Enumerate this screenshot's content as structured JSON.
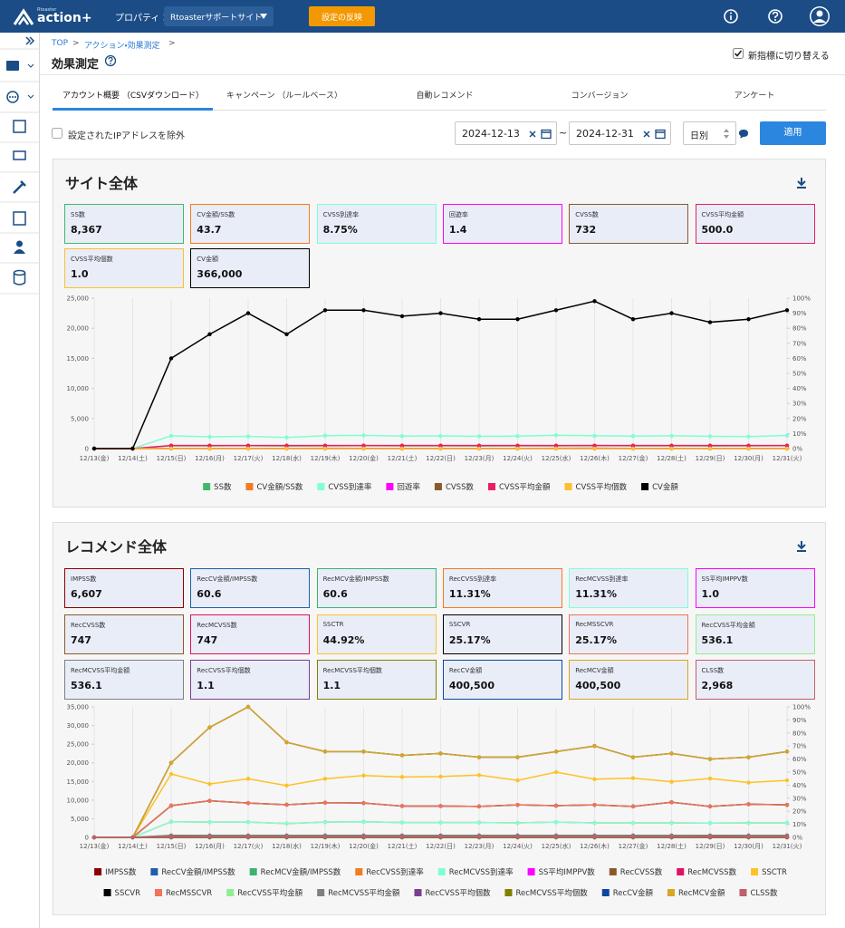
{
  "header": {
    "logo_small": "Rtoaster",
    "logo": "action+",
    "property_label": "プロパティ：",
    "property": "Rtoasterサポートサイト",
    "apply_button": "設定の反映"
  },
  "breadcrumb": {
    "items": [
      "TOP",
      "アクション・効果測定"
    ],
    "separator": ">"
  },
  "page_title": "効果測定",
  "switch_label": "新指標に切り替える",
  "tabs": [
    "アカウント概要 （CSVダウンロード）",
    "キャンペーン （ルールベース）",
    "自動レコメンド",
    "コンバージョン",
    "アンケート"
  ],
  "filters": {
    "exclude_ip": "設定されたIPアドレスを除外",
    "start_date": "2024-12-13",
    "separator": "~",
    "end_date": "2024-12-31",
    "interval": "日別",
    "apply": "適用"
  },
  "sections": [
    {
      "title": "サイト全体",
      "kpi_values": [
        "8,367",
        "43.7",
        "8.75%",
        "1.4",
        "732",
        "500.0",
        "1.0",
        "366,000"
      ]
    },
    {
      "title": "レコメンド全体",
      "kpi_values": [
        "6,607",
        "60.6",
        "60.6",
        "11.31%",
        "11.31%",
        "1.0",
        "747",
        "747",
        "44.92%",
        "25.17%",
        "25.17%",
        "536.1",
        "536.1",
        "1.1",
        "1.1",
        "400,500",
        "400,500",
        "2,968"
      ]
    }
  ],
  "chart_data": [
    {
      "type": "line",
      "categories": [
        "12/13(金)",
        "12/14(土)",
        "12/15(日)",
        "12/16(月)",
        "12/17(火)",
        "12/18(水)",
        "12/19(木)",
        "12/20(金)",
        "12/21(土)",
        "12/22(日)",
        "12/23(月)",
        "12/24(火)",
        "12/25(水)",
        "12/26(木)",
        "12/27(金)",
        "12/28(土)",
        "12/29(日)",
        "12/30(月)",
        "12/31(火)"
      ],
      "ylim": [
        0,
        25000
      ],
      "yticks": [
        0,
        {
          "value": 5000,
          "label": "5,000"
        },
        {
          "value": 10000,
          "label": "10,000"
        },
        {
          "value": 15000,
          "label": "15,000"
        },
        {
          "value": 20000,
          "label": "20,000"
        },
        {
          "value": 25000,
          "label": "25,000"
        }
      ],
      "y2lim": [
        0,
        100
      ],
      "y2ticks": [
        {
          "value": 0,
          "label": "0%"
        },
        {
          "value": 10,
          "label": "10%"
        },
        {
          "value": 20,
          "label": "20%"
        },
        {
          "value": 30,
          "label": "30%"
        },
        {
          "value": 40,
          "label": "40%"
        },
        {
          "value": 50,
          "label": "50%"
        },
        {
          "value": 60,
          "label": "60%"
        },
        {
          "value": 70,
          "label": "70%"
        },
        {
          "value": 80,
          "label": "80%"
        },
        {
          "value": 90,
          "label": "90%"
        },
        {
          "value": 100,
          "label": "100%"
        }
      ],
      "series": [
        {
          "name": "SS数",
          "color": "#3dbb6a",
          "values": [
            0,
            0,
            480,
            470,
            490,
            460,
            480,
            490,
            470,
            480,
            460,
            470,
            480,
            500,
            470,
            480,
            460,
            470,
            490
          ]
        },
        {
          "name": "CV金額/SS数",
          "color": "#f47b20",
          "values": [
            0,
            0,
            31,
            40,
            46,
            41,
            48,
            47,
            47,
            47,
            47,
            46,
            48,
            49,
            46,
            47,
            46,
            46,
            47
          ]
        },
        {
          "name": "CVSS到達率",
          "color": "#7fffd4",
          "axis": "y2",
          "values": [
            0,
            0,
            8.5,
            7.8,
            8.1,
            7.4,
            8.6,
            8.8,
            8.3,
            8.4,
            8.2,
            8.3,
            8.9,
            8.5,
            8.3,
            8.5,
            8.2,
            8.0,
            8.7
          ]
        },
        {
          "name": "回遊率",
          "color": "#ff00ff",
          "values": [
            0,
            0,
            1.4,
            1.4,
            1.4,
            1.4,
            1.4,
            1.4,
            1.4,
            1.4,
            1.4,
            1.4,
            1.4,
            1.4,
            1.4,
            1.4,
            1.4,
            1.4,
            1.4
          ]
        },
        {
          "name": "CVSS数",
          "color": "#8b5a2b",
          "values": [
            0,
            0,
            30,
            38,
            45,
            38,
            46,
            46,
            44,
            45,
            43,
            43,
            46,
            49,
            43,
            45,
            42,
            43,
            46
          ]
        },
        {
          "name": "CVSS平均金額",
          "color": "#e91e63",
          "values": [
            0,
            0,
            500,
            500,
            500,
            500,
            500,
            500,
            500,
            500,
            500,
            500,
            500,
            500,
            500,
            500,
            500,
            500,
            500
          ]
        },
        {
          "name": "CVSS平均個数",
          "color": "#fbc02d",
          "values": [
            0,
            0,
            1,
            1,
            1,
            1,
            1,
            1,
            1,
            1,
            1,
            1,
            1,
            1,
            1,
            1,
            1,
            1,
            1
          ]
        },
        {
          "name": "CV金額",
          "color": "#000000",
          "values": [
            0,
            0,
            15000,
            19000,
            22500,
            19000,
            23000,
            23000,
            22000,
            22500,
            21500,
            21500,
            23000,
            24500,
            21500,
            22500,
            21000,
            21500,
            23000
          ]
        }
      ]
    },
    {
      "type": "line",
      "categories": [
        "12/13(金)",
        "12/14(土)",
        "12/15(日)",
        "12/16(月)",
        "12/17(火)",
        "12/18(水)",
        "12/19(木)",
        "12/20(金)",
        "12/21(土)",
        "12/22(日)",
        "12/23(月)",
        "12/24(火)",
        "12/25(水)",
        "12/26(木)",
        "12/27(金)",
        "12/28(土)",
        "12/29(日)",
        "12/30(月)",
        "12/31(火)"
      ],
      "ylim": [
        0,
        35000
      ],
      "yticks": [
        0,
        {
          "value": 5000,
          "label": "5,000"
        },
        {
          "value": 10000,
          "label": "10,000"
        },
        {
          "value": 15000,
          "label": "15,000"
        },
        {
          "value": 20000,
          "label": "20,000"
        },
        {
          "value": 25000,
          "label": "25,000"
        },
        {
          "value": 30000,
          "label": "30,000"
        },
        {
          "value": 35000,
          "label": "35,000"
        }
      ],
      "y2lim": [
        0,
        100
      ],
      "y2ticks": [
        {
          "value": 0,
          "label": "0%"
        },
        {
          "value": 10,
          "label": "10%"
        },
        {
          "value": 20,
          "label": "20%"
        },
        {
          "value": 30,
          "label": "30%"
        },
        {
          "value": 40,
          "label": "40%"
        },
        {
          "value": 50,
          "label": "50%"
        },
        {
          "value": 60,
          "label": "60%"
        },
        {
          "value": 70,
          "label": "70%"
        },
        {
          "value": 80,
          "label": "80%"
        },
        {
          "value": 90,
          "label": "90%"
        },
        {
          "value": 100,
          "label": "100%"
        }
      ],
      "series": [
        {
          "name": "IMPSS数",
          "color": "#8b0000",
          "values": [
            0,
            0,
            300,
            340,
            380,
            360,
            370,
            370,
            350,
            360,
            340,
            350,
            380,
            400,
            350,
            360,
            330,
            350,
            370
          ]
        },
        {
          "name": "RecCV金額/IMPSS数",
          "color": "#1f5fa8",
          "values": [
            0,
            0,
            66.7,
            86.8,
            92.1,
            70.8,
            62.2,
            62.2,
            62.9,
            62.5,
            63.2,
            61.4,
            60.5,
            61.3,
            61.4,
            62.5,
            63.6,
            61.4,
            62.2
          ]
        },
        {
          "name": "RecMCV金額/IMPSS数",
          "color": "#3cb371",
          "values": [
            0,
            0,
            66.7,
            86.8,
            92.1,
            70.8,
            62.2,
            62.2,
            62.9,
            62.5,
            63.2,
            61.4,
            60.5,
            61.3,
            61.4,
            62.5,
            63.6,
            61.4,
            62.2
          ]
        },
        {
          "name": "RecCVSS到達率",
          "color": "#f47b20",
          "axis": "y2",
          "values": [
            0,
            0,
            12,
            11.7,
            11.7,
            10.6,
            11.7,
            12,
            11.4,
            11.4,
            11.4,
            11.1,
            11.7,
            11.1,
            11.1,
            11.1,
            10.9,
            11.1,
            11.1
          ]
        },
        {
          "name": "RecMCVSS到達率",
          "color": "#7fffd4",
          "axis": "y2",
          "values": [
            0,
            0,
            12,
            11.7,
            11.7,
            10.6,
            11.7,
            12,
            11.4,
            11.4,
            11.4,
            11.1,
            11.7,
            11.1,
            11.1,
            11.1,
            10.9,
            11.1,
            11.1
          ]
        },
        {
          "name": "SS平均IMPPV数",
          "color": "#ff00ff",
          "values": [
            0,
            0,
            1,
            1,
            1,
            1,
            1,
            1,
            1,
            1,
            1,
            1,
            1,
            1,
            1,
            1,
            1,
            1,
            1
          ]
        },
        {
          "name": "RecCVSS数",
          "color": "#8b5a2b",
          "values": [
            0,
            0,
            40,
            59,
            70,
            51,
            46,
            46,
            44,
            45,
            43,
            43,
            46,
            49,
            43,
            45,
            42,
            43,
            46
          ]
        },
        {
          "name": "RecMCVSS数",
          "color": "#e0115f",
          "values": [
            0,
            0,
            40,
            59,
            70,
            51,
            46,
            46,
            44,
            45,
            43,
            43,
            46,
            49,
            43,
            45,
            42,
            43,
            46
          ]
        },
        {
          "name": "SSCTR",
          "color": "#ffc125",
          "axis": "y2",
          "values": [
            0,
            0,
            48.6,
            40.9,
            44.9,
            39.7,
            44.9,
            47.4,
            46.3,
            46.6,
            47.7,
            43.7,
            50,
            44.6,
            45.4,
            42.6,
            45.1,
            42,
            43.7
          ]
        },
        {
          "name": "SSCVR",
          "color": "#000000",
          "axis": "y2",
          "values": [
            0,
            0,
            24.3,
            28,
            26.3,
            25,
            26.6,
            26.3,
            24,
            24,
            23.7,
            24.9,
            24.3,
            24.9,
            23.7,
            26.9,
            23.7,
            25.4,
            24.9
          ]
        },
        {
          "name": "RecMSSCVR",
          "color": "#f0735a",
          "axis": "y2",
          "values": [
            0,
            0,
            24.3,
            28,
            26.3,
            25,
            26.6,
            26.3,
            24,
            24,
            23.7,
            24.9,
            24.3,
            24.9,
            23.7,
            26.9,
            23.7,
            25.4,
            24.9
          ]
        },
        {
          "name": "RecCVSS平均金額",
          "color": "#90ee90",
          "values": [
            0,
            0,
            540,
            540,
            540,
            540,
            540,
            540,
            540,
            540,
            540,
            540,
            540,
            540,
            540,
            540,
            540,
            540,
            540
          ]
        },
        {
          "name": "RecMCVSS平均金額",
          "color": "#808080",
          "values": [
            0,
            0,
            540,
            540,
            540,
            540,
            540,
            540,
            540,
            540,
            540,
            540,
            540,
            540,
            540,
            540,
            540,
            540,
            540
          ]
        },
        {
          "name": "RecCVSS平均個数",
          "color": "#7b3f8f",
          "values": [
            0,
            0,
            1.1,
            1.1,
            1.1,
            1.1,
            1.1,
            1.1,
            1.1,
            1.1,
            1.1,
            1.1,
            1.1,
            1.1,
            1.1,
            1.1,
            1.1,
            1.1,
            1.1
          ]
        },
        {
          "name": "RecMCVSS平均個数",
          "color": "#808000",
          "values": [
            0,
            0,
            1.1,
            1.1,
            1.1,
            1.1,
            1.1,
            1.1,
            1.1,
            1.1,
            1.1,
            1.1,
            1.1,
            1.1,
            1.1,
            1.1,
            1.1,
            1.1,
            1.1
          ]
        },
        {
          "name": "RecCV金額",
          "color": "#0d47a1",
          "values": [
            0,
            0,
            20000,
            29500,
            35000,
            25500,
            23000,
            23000,
            22000,
            22500,
            21500,
            21500,
            23000,
            24500,
            21500,
            22500,
            21000,
            21500,
            23000
          ]
        },
        {
          "name": "RecMCV金額",
          "color": "#daa520",
          "values": [
            0,
            0,
            20000,
            29500,
            35000,
            25500,
            23000,
            23000,
            22000,
            22500,
            21500,
            21500,
            23000,
            24500,
            21500,
            22500,
            21000,
            21500,
            23000
          ]
        },
        {
          "name": "CLSS数",
          "color": "#c0606a",
          "values": [
            0,
            0,
            160,
            170,
            180,
            170,
            175,
            175,
            170,
            175,
            170,
            170,
            180,
            185,
            170,
            175,
            165,
            170,
            175
          ]
        }
      ]
    }
  ]
}
